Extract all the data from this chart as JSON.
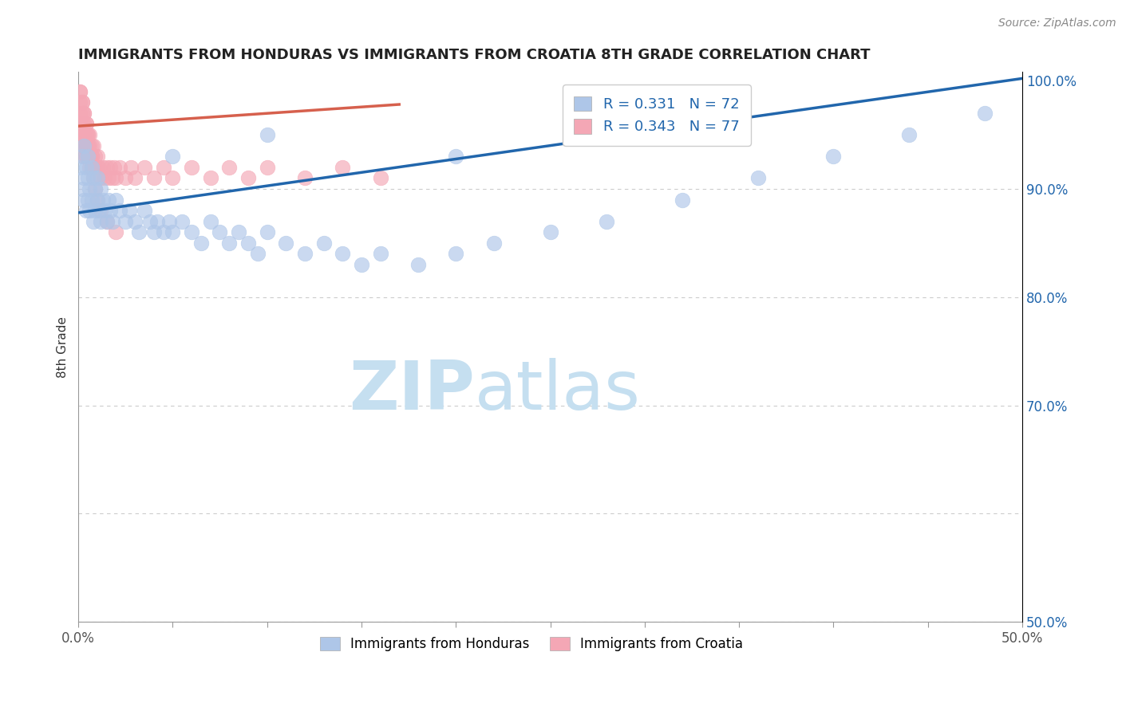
{
  "title": "IMMIGRANTS FROM HONDURAS VS IMMIGRANTS FROM CROATIA 8TH GRADE CORRELATION CHART",
  "source": "Source: ZipAtlas.com",
  "ylabel": "8th Grade",
  "x_min": 0.0,
  "x_max": 0.5,
  "y_min": 0.5,
  "y_max": 1.008,
  "x_tick_positions": [
    0.0,
    0.05,
    0.1,
    0.15,
    0.2,
    0.25,
    0.3,
    0.35,
    0.4,
    0.45,
    0.5
  ],
  "x_tick_labels": [
    "0.0%",
    "",
    "",
    "",
    "",
    "",
    "",
    "",
    "",
    "",
    "50.0%"
  ],
  "y_tick_positions": [
    0.5,
    0.6,
    0.7,
    0.8,
    0.9,
    1.0
  ],
  "y_tick_labels_right": [
    "50.0%",
    "",
    "70.0%",
    "80.0%",
    "90.0%",
    "100.0%"
  ],
  "legend_r_honduras": "R = 0.331",
  "legend_n_honduras": "N = 72",
  "legend_r_croatia": "R = 0.343",
  "legend_n_croatia": "N = 77",
  "color_honduras": "#aec6e8",
  "color_croatia": "#f4a7b5",
  "color_trendline_honduras": "#2166ac",
  "color_trendline_croatia": "#d6604d",
  "color_right_axis": "#2166ac",
  "watermark_zip": "ZIP",
  "watermark_atlas": "atlas",
  "watermark_color_zip": "#c5dff0",
  "watermark_color_atlas": "#c5dff0",
  "background_color": "#ffffff",
  "grid_color": "#cccccc",
  "trendline_honduras_x0": 0.0,
  "trendline_honduras_y0": 0.878,
  "trendline_honduras_x1": 0.5,
  "trendline_honduras_y1": 1.002,
  "trendline_croatia_x0": 0.0,
  "trendline_croatia_y0": 0.958,
  "trendline_croatia_x1": 0.17,
  "trendline_croatia_y1": 0.978,
  "honduras_x": [
    0.001,
    0.002,
    0.002,
    0.003,
    0.003,
    0.003,
    0.004,
    0.004,
    0.005,
    0.005,
    0.005,
    0.006,
    0.006,
    0.007,
    0.007,
    0.008,
    0.008,
    0.009,
    0.009,
    0.01,
    0.01,
    0.011,
    0.012,
    0.012,
    0.013,
    0.014,
    0.015,
    0.016,
    0.017,
    0.018,
    0.02,
    0.022,
    0.025,
    0.027,
    0.03,
    0.032,
    0.035,
    0.038,
    0.04,
    0.042,
    0.045,
    0.048,
    0.05,
    0.055,
    0.06,
    0.065,
    0.07,
    0.075,
    0.08,
    0.085,
    0.09,
    0.095,
    0.1,
    0.11,
    0.12,
    0.13,
    0.14,
    0.15,
    0.16,
    0.18,
    0.2,
    0.22,
    0.25,
    0.28,
    0.32,
    0.36,
    0.4,
    0.44,
    0.48,
    0.05,
    0.1,
    0.2
  ],
  "honduras_y": [
    0.92,
    0.9,
    0.93,
    0.91,
    0.89,
    0.94,
    0.92,
    0.88,
    0.91,
    0.89,
    0.93,
    0.9,
    0.88,
    0.92,
    0.89,
    0.91,
    0.87,
    0.9,
    0.88,
    0.91,
    0.89,
    0.88,
    0.9,
    0.87,
    0.89,
    0.88,
    0.87,
    0.89,
    0.88,
    0.87,
    0.89,
    0.88,
    0.87,
    0.88,
    0.87,
    0.86,
    0.88,
    0.87,
    0.86,
    0.87,
    0.86,
    0.87,
    0.86,
    0.87,
    0.86,
    0.85,
    0.87,
    0.86,
    0.85,
    0.86,
    0.85,
    0.84,
    0.86,
    0.85,
    0.84,
    0.85,
    0.84,
    0.83,
    0.84,
    0.83,
    0.84,
    0.85,
    0.86,
    0.87,
    0.89,
    0.91,
    0.93,
    0.95,
    0.97,
    0.93,
    0.95,
    0.93
  ],
  "croatia_x": [
    0.001,
    0.001,
    0.001,
    0.001,
    0.002,
    0.002,
    0.002,
    0.002,
    0.003,
    0.003,
    0.003,
    0.003,
    0.004,
    0.004,
    0.004,
    0.005,
    0.005,
    0.005,
    0.006,
    0.006,
    0.006,
    0.007,
    0.007,
    0.007,
    0.008,
    0.008,
    0.009,
    0.009,
    0.01,
    0.01,
    0.011,
    0.012,
    0.013,
    0.014,
    0.015,
    0.016,
    0.017,
    0.018,
    0.019,
    0.02,
    0.022,
    0.025,
    0.028,
    0.03,
    0.035,
    0.04,
    0.045,
    0.05,
    0.06,
    0.07,
    0.08,
    0.09,
    0.1,
    0.12,
    0.14,
    0.16,
    0.001,
    0.002,
    0.003,
    0.004,
    0.005,
    0.006,
    0.007,
    0.008,
    0.009,
    0.01,
    0.012,
    0.015,
    0.02,
    0.001,
    0.002,
    0.003,
    0.004,
    0.005,
    0.006,
    0.007,
    0.008
  ],
  "croatia_y": [
    0.99,
    0.97,
    0.96,
    0.95,
    0.98,
    0.96,
    0.95,
    0.94,
    0.97,
    0.95,
    0.94,
    0.93,
    0.96,
    0.94,
    0.93,
    0.95,
    0.94,
    0.93,
    0.95,
    0.93,
    0.92,
    0.94,
    0.93,
    0.92,
    0.94,
    0.92,
    0.93,
    0.92,
    0.93,
    0.92,
    0.92,
    0.91,
    0.92,
    0.91,
    0.92,
    0.91,
    0.92,
    0.91,
    0.92,
    0.91,
    0.92,
    0.91,
    0.92,
    0.91,
    0.92,
    0.91,
    0.92,
    0.91,
    0.92,
    0.91,
    0.92,
    0.91,
    0.92,
    0.91,
    0.92,
    0.91,
    0.98,
    0.97,
    0.96,
    0.95,
    0.94,
    0.93,
    0.92,
    0.91,
    0.9,
    0.89,
    0.88,
    0.87,
    0.86,
    0.99,
    0.98,
    0.97,
    0.96,
    0.95,
    0.94,
    0.93,
    0.92
  ]
}
